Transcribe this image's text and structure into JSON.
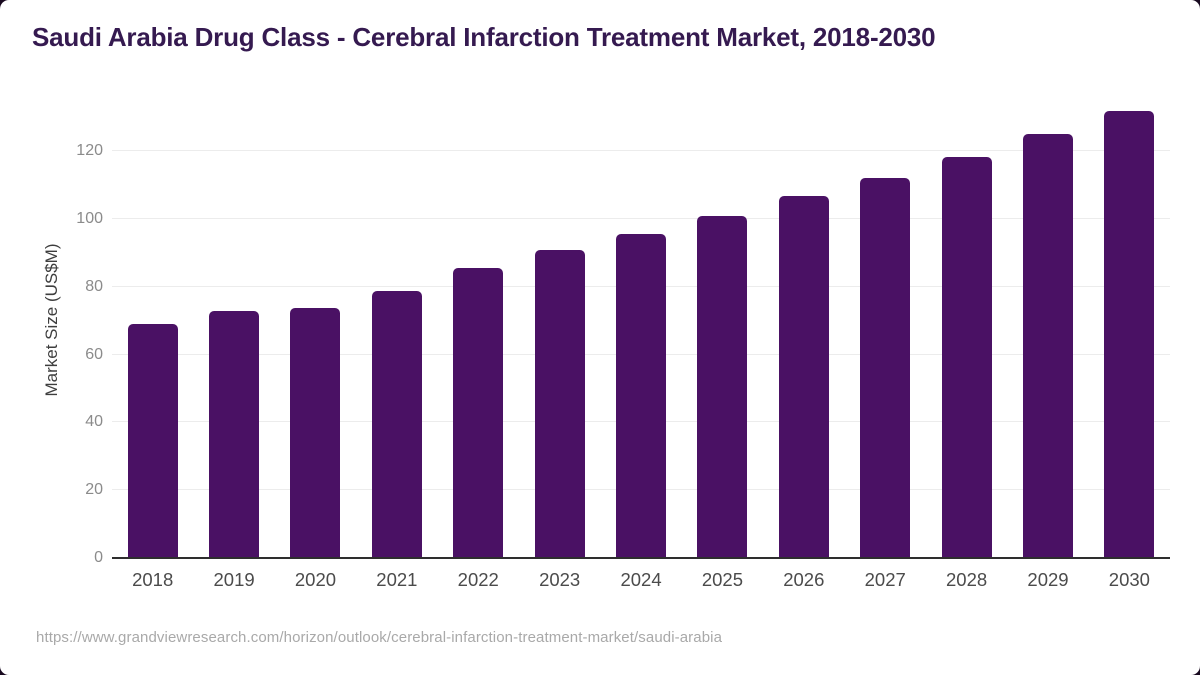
{
  "colors": {
    "page-bg": "#18091f",
    "card-bg": "#ffffff",
    "title": "#351a50",
    "bars": "#4a1164",
    "grid": "#ececec",
    "baseline": "#2e2e2e",
    "ytick-text": "#8b8b8b",
    "xtick-text": "#4b4b4b",
    "axis-label-text": "#3e3e3e",
    "footer-text": "#a9a9a9"
  },
  "header": {
    "title": "Saudi Arabia Drug Class - Cerebral Infarction Treatment Market, 2018-2030"
  },
  "footer": {
    "source_url": "https://www.grandviewresearch.com/horizon/outlook/cerebral-infarction-treatment-market/saudi-arabia"
  },
  "chart_data": {
    "type": "bar",
    "title": "Saudi Arabia Drug Class - Cerebral Infarction Treatment Market, 2018-2030",
    "categories": [
      "2018",
      "2019",
      "2020",
      "2021",
      "2022",
      "2023",
      "2024",
      "2025",
      "2026",
      "2027",
      "2028",
      "2029",
      "2030"
    ],
    "values": [
      69.1,
      72.9,
      73.8,
      78.7,
      85.6,
      90.7,
      95.5,
      100.8,
      106.7,
      112.1,
      118.2,
      125.0,
      131.7
    ],
    "xlabel": "",
    "ylabel": "Market Size (US$M)",
    "ylim": [
      0,
      137
    ],
    "yticks": [
      0,
      20,
      40,
      60,
      80,
      100,
      120
    ],
    "grid": "horizontal",
    "legend": false,
    "bar_color": "#4a1164"
  }
}
